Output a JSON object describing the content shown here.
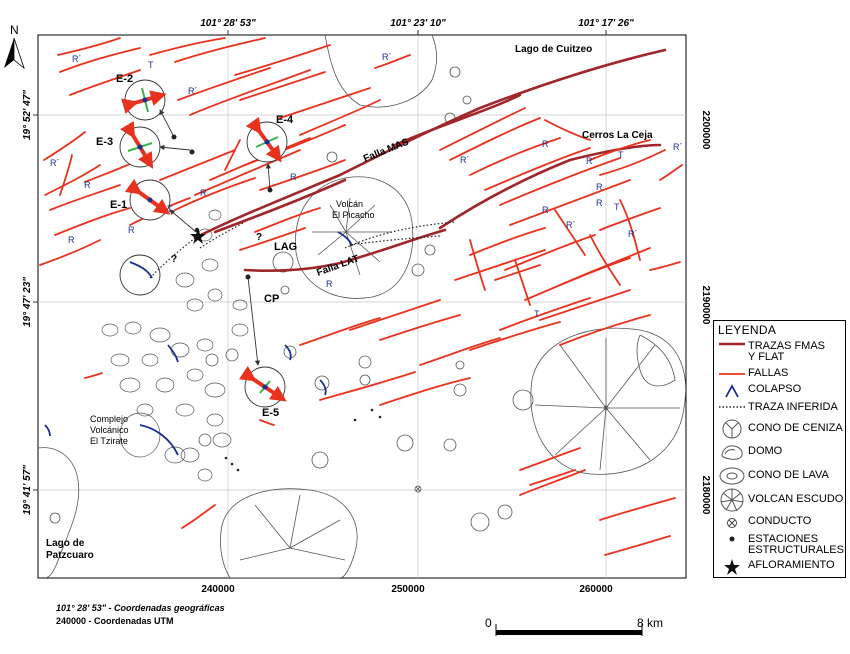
{
  "north_label": "N",
  "coord_top": [
    "101° 28' 53\"",
    "101° 23' 10\"",
    "101° 17' 26\""
  ],
  "coord_left": [
    "19° 52' 47\"",
    "19° 47' 23\"",
    "19° 41' 57\""
  ],
  "utm_bottom": [
    "240000",
    "250000",
    "260000"
  ],
  "utm_right": [
    "2200000",
    "2190000",
    "2180000"
  ],
  "place_labels": {
    "lago_cuitzeo": "Lago de Cuitzeo",
    "cerros_la_ceja": "Cerros La Ceja",
    "volcan_picacho_1": "Volcán",
    "volcan_picacho_2": "El Picacho",
    "falla_mas": "Falla MAS",
    "falla_lat": "Falla LAT",
    "lag": "LAG",
    "cp": "CP",
    "tzirate_1": "Complejo",
    "tzirate_2": "Volcánico",
    "tzirate_3": "El Tzirate",
    "lago_patzcuaro_1": "Lago de",
    "lago_patzcuaro_2": "Patzcuaro"
  },
  "stations": [
    "E-1",
    "E-2",
    "E-3",
    "E-4",
    "E-5"
  ],
  "fault_marks": {
    "r": "R",
    "r_prime": "R´",
    "t": "T",
    "question": "?"
  },
  "legend": {
    "title": "LEYENDA",
    "items": [
      {
        "label": "TRAZAS FMAS",
        "label2": "Y FLAT"
      },
      {
        "label": "FALLAS"
      },
      {
        "label": "COLAPSO"
      },
      {
        "label": "TRAZA INFERIDA"
      },
      {
        "label": "CONO DE CENIZA"
      },
      {
        "label": "DOMO"
      },
      {
        "label": "CONO DE LAVA"
      },
      {
        "label": "VOLCAN ESCUDO"
      },
      {
        "label": "CONDUCTO"
      },
      {
        "label": "ESTACIONES",
        "label2": "ESTRUCTURALES"
      },
      {
        "label": "AFLORAMIENTO"
      }
    ]
  },
  "colors": {
    "fault": "#e8321e",
    "master_trace": "#a0262a",
    "collapse": "#1c2f8f",
    "volcano_outline": "#555555",
    "grid": "#c8c8c8"
  },
  "footer": {
    "geo_note": "101° 28' 53\" - Coordenadas geográficas",
    "utm_note": "240000 - Coordenadas UTM"
  },
  "scale": {
    "start": "0",
    "end": "8 km"
  }
}
